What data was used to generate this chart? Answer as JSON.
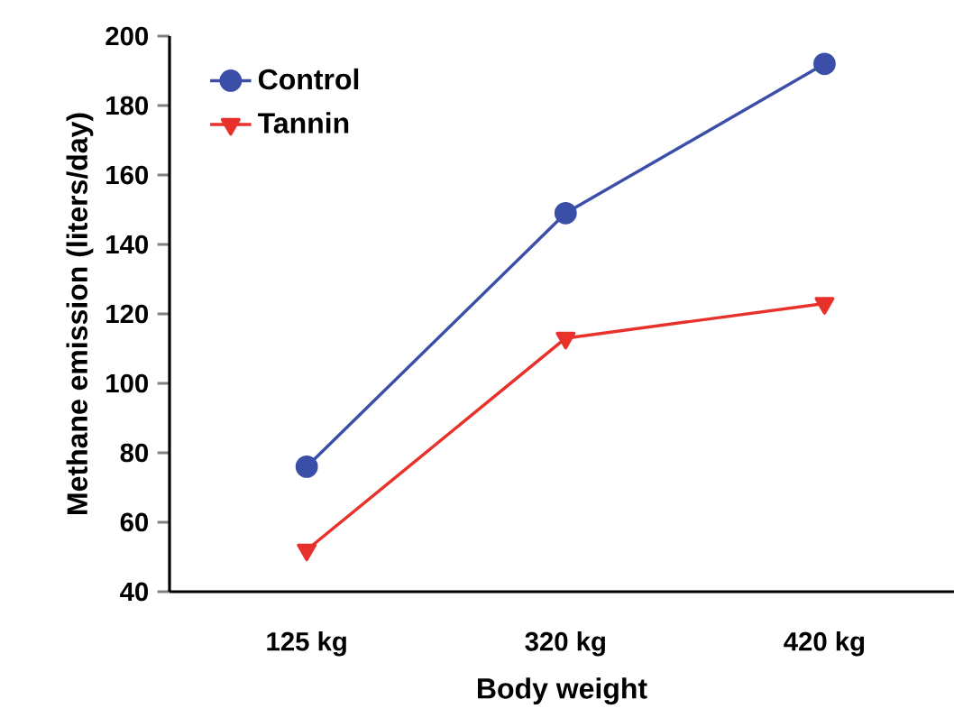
{
  "chart_data": {
    "type": "line",
    "xlabel": "Body weight",
    "ylabel": "Methane emission (liters/day)",
    "categories": [
      "125 kg",
      "320 kg",
      "420 kg"
    ],
    "series": [
      {
        "name": "Control",
        "color": "#3b4fa8",
        "marker": "circle",
        "values": [
          76,
          149,
          192
        ]
      },
      {
        "name": "Tannin",
        "color": "#e8312a",
        "marker": "triangle",
        "values": [
          52,
          113,
          123
        ]
      }
    ],
    "ylim": [
      40,
      200
    ],
    "yticks": [
      40,
      60,
      80,
      100,
      120,
      140,
      160,
      180,
      200
    ],
    "legend": "top left",
    "grid": false,
    "line_style": "solid"
  }
}
